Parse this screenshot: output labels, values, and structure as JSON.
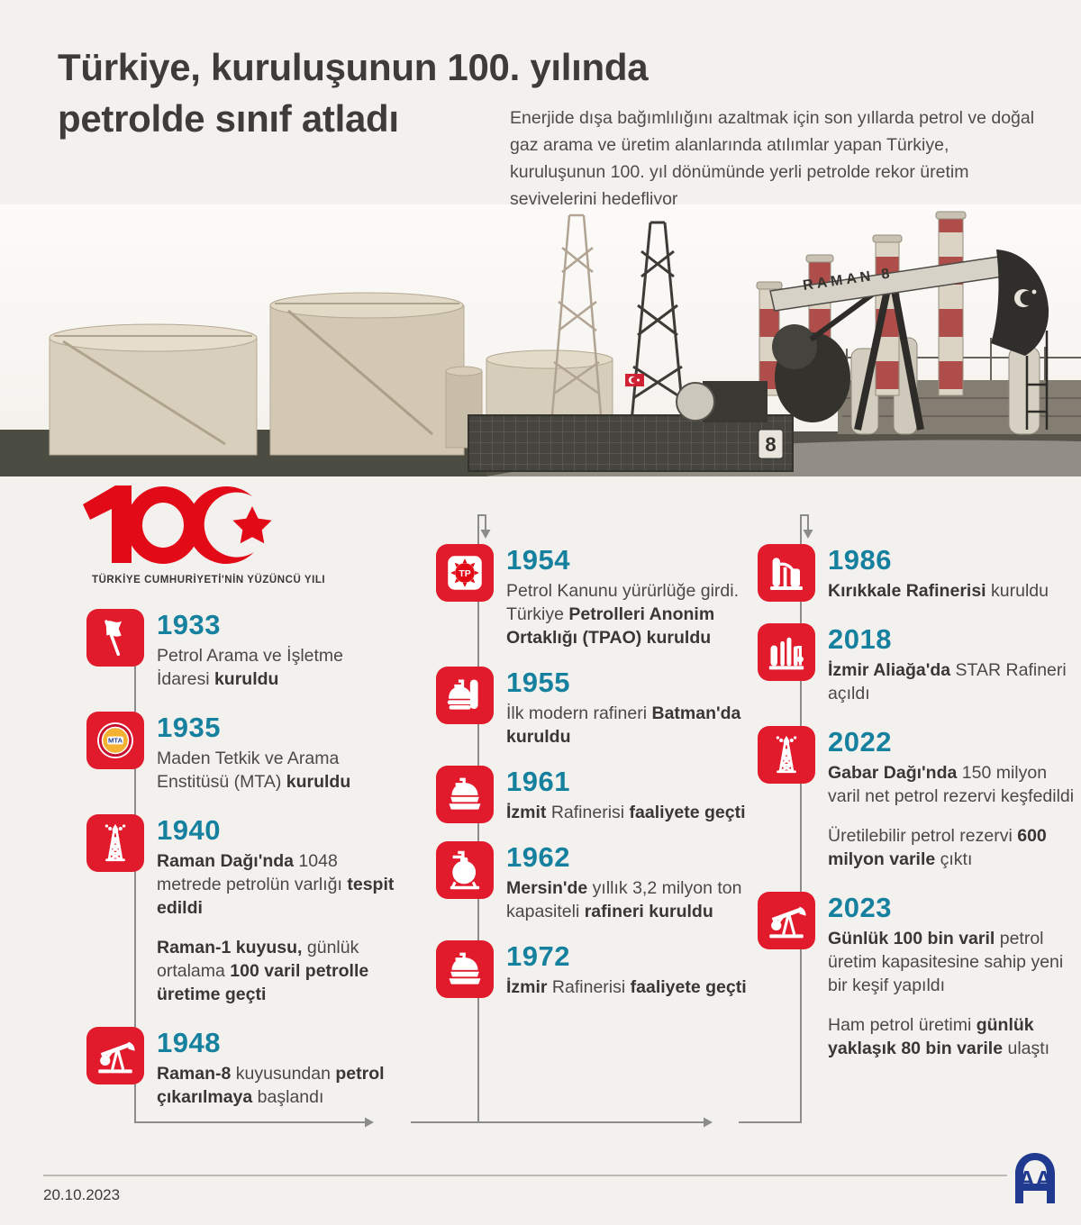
{
  "header": {
    "title_line1": "Türkiye, kuruluşunun 100. yılında",
    "title_line2": "petrolde sınıf atladı",
    "intro": "Enerjide dışa bağımlılığını azaltmak için son yıllarda petrol ve doğal gaz arama ve üretim alanlarında atılımlar yapan Türkiye, kuruluşunun 100. yıl dönümünde yerli petrolde rekor üretim seviyelerini hedefliyor"
  },
  "photo": {
    "pumpjack_label": "RAMAN 8",
    "pumpjack_number": "8"
  },
  "centennial_logo": {
    "caption": "TÜRKİYE CUMHURİYETİ'NİN YÜZÜNCÜ YILI"
  },
  "icon_labels": {
    "mta": "MTA",
    "tpao": "TP"
  },
  "colors": {
    "accent_red": "#e11b2c",
    "year_teal": "#16809f",
    "logo_red": "#e30a17",
    "aa_blue": "#203a8f"
  },
  "timeline": {
    "columns": [
      {
        "items": [
          {
            "year": "1933",
            "icon": "flag-icon",
            "paragraphs": [
              [
                {
                  "t": "Petrol Arama ve İşletme İdaresi "
                },
                {
                  "t": "kuruldu",
                  "b": true
                }
              ]
            ]
          },
          {
            "year": "1935",
            "icon": "mta-logo-icon",
            "paragraphs": [
              [
                {
                  "t": "Maden Tetkik ve Arama Enstitüsü (MTA) "
                },
                {
                  "t": "kuruldu",
                  "b": true
                }
              ]
            ]
          },
          {
            "year": "1940",
            "icon": "oil-derrick-icon",
            "paragraphs": [
              [
                {
                  "t": "Raman Dağı'nda",
                  "b": true
                },
                {
                  "t": " 1048 metrede petrolün varlığı "
                },
                {
                  "t": "tespit edildi",
                  "b": true
                }
              ],
              [
                {
                  "t": "Raman-1 kuyusu,",
                  "b": true
                },
                {
                  "t": " günlük ortalama "
                },
                {
                  "t": "100 varil petrolle üretime geçti",
                  "b": true
                }
              ]
            ]
          },
          {
            "year": "1948",
            "icon": "pumpjack-icon",
            "paragraphs": [
              [
                {
                  "t": "Raman-8",
                  "b": true
                },
                {
                  "t": " kuyusundan "
                },
                {
                  "t": "petrol çıkarılmaya",
                  "b": true
                },
                {
                  "t": " başlandı"
                }
              ]
            ]
          }
        ]
      },
      {
        "items": [
          {
            "year": "1954",
            "icon": "tpao-logo-icon",
            "paragraphs": [
              [
                {
                  "t": "Petrol Kanunu yürürlüğe girdi. Türkiye "
                },
                {
                  "t": "Petrolleri Anonim Ortaklığı (TPAO) kuruldu",
                  "b": true
                }
              ]
            ]
          },
          {
            "year": "1955",
            "icon": "refinery-tank-icon",
            "paragraphs": [
              [
                {
                  "t": "İlk modern rafineri "
                },
                {
                  "t": "Batman'da kuruldu",
                  "b": true
                }
              ]
            ]
          },
          {
            "year": "1961",
            "icon": "storage-tank-icon",
            "paragraphs": [
              [
                {
                  "t": "İzmit",
                  "b": true
                },
                {
                  "t": " Rafinerisi "
                },
                {
                  "t": "faaliyete geçti",
                  "b": true
                }
              ]
            ]
          },
          {
            "year": "1962",
            "icon": "sphere-tank-icon",
            "paragraphs": [
              [
                {
                  "t": "Mersin'de",
                  "b": true
                },
                {
                  "t": " yıllık 3,2 milyon ton kapasiteli "
                },
                {
                  "t": "rafineri kuruldu",
                  "b": true
                }
              ]
            ]
          },
          {
            "year": "1972",
            "icon": "storage-tank-icon",
            "paragraphs": [
              [
                {
                  "t": "İzmir",
                  "b": true
                },
                {
                  "t": " Rafinerisi "
                },
                {
                  "t": "faaliyete geçti",
                  "b": true
                }
              ]
            ]
          }
        ]
      },
      {
        "items": [
          {
            "year": "1986",
            "icon": "refinery-towers-icon",
            "paragraphs": [
              [
                {
                  "t": "Kırıkkale Rafinerisi",
                  "b": true
                },
                {
                  "t": " kuruldu"
                }
              ]
            ]
          },
          {
            "year": "2018",
            "icon": "refinery-columns-icon",
            "paragraphs": [
              [
                {
                  "t": "İzmir Aliağa'da",
                  "b": true
                },
                {
                  "t": " STAR Rafineri açıldı"
                }
              ]
            ]
          },
          {
            "year": "2022",
            "icon": "oil-derrick-icon",
            "paragraphs": [
              [
                {
                  "t": "Gabar Dağı'nda",
                  "b": true
                },
                {
                  "t": " 150 milyon varil net petrol rezervi keşfedildi"
                }
              ],
              [
                {
                  "t": "Üretilebilir petrol rezervi "
                },
                {
                  "t": "600 milyon varile",
                  "b": true
                },
                {
                  "t": " çıktı"
                }
              ]
            ]
          },
          {
            "year": "2023",
            "icon": "pumpjack-icon",
            "paragraphs": [
              [
                {
                  "t": "Günlük 100 bin varil",
                  "b": true
                },
                {
                  "t": " petrol üretim kapasitesine sahip yeni bir keşif yapıldı"
                }
              ],
              [
                {
                  "t": "Ham petrol üretimi "
                },
                {
                  "t": "günlük yaklaşık 80 bin varile",
                  "b": true
                },
                {
                  "t": " ulaştı"
                }
              ]
            ]
          }
        ]
      }
    ]
  },
  "footer": {
    "date": "20.10.2023",
    "agency": "AA"
  }
}
